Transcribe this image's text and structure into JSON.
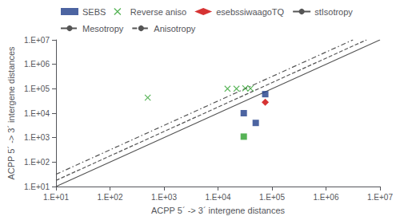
{
  "chart_data": {
    "type": "scatter",
    "xlabel": "ACPP 5´ -> 3´ intergene distances",
    "ylabel": "ACPP 5´ -> 3´ intergene distances",
    "log": true,
    "grid": false,
    "legend": "upper left",
    "xlim": [
      10,
      10000000
    ],
    "ylim": [
      10,
      10000000
    ],
    "xticks": [
      {
        "value": 10,
        "label": "1.E+01"
      },
      {
        "value": 100,
        "label": "1.E+02"
      },
      {
        "value": 1000,
        "label": "1.E+03"
      },
      {
        "value": 10000,
        "label": "1.E+04"
      },
      {
        "value": 100000,
        "label": "1.E+05"
      },
      {
        "value": 1000000,
        "label": "1.E+06"
      },
      {
        "value": 10000000,
        "label": "1.E+07"
      }
    ],
    "yticks": [
      {
        "value": 10,
        "label": "1.E+01"
      },
      {
        "value": 100,
        "label": "1.E+02"
      },
      {
        "value": 1000,
        "label": "1.E+03"
      },
      {
        "value": 10000,
        "label": "1.E+04"
      },
      {
        "value": 100000,
        "label": "1.E+05"
      },
      {
        "value": 1000000,
        "label": "1.E+06"
      },
      {
        "value": 10000000,
        "label": "1.E+07"
      }
    ],
    "series": [
      {
        "name": "SEBS",
        "type": "scatter",
        "marker": "square",
        "color": "#1f3d8a",
        "x": [
          30000,
          75000,
          50000
        ],
        "values": [
          10000,
          60000,
          4000
        ]
      },
      {
        "type": "scatter",
        "marker": "square",
        "color": "#2ca02c",
        "x": [
          30000
        ],
        "values": [
          1100
        ]
      },
      {
        "name": "Reverse aniso",
        "type": "scatter",
        "marker": "x",
        "color": "#2ca02c",
        "x": [
          500,
          15000,
          22000,
          32000,
          40000
        ],
        "values": [
          43000,
          100000,
          100000,
          105000,
          102000
        ]
      },
      {
        "name": "esebssiwaagoTQ",
        "type": "scatter",
        "marker": "diamond",
        "color": "#cc0000",
        "x": [
          75000
        ],
        "values": [
          28000
        ]
      },
      {
        "name": "stIsotropy",
        "type": "line",
        "line_style": "solid",
        "color": "#555555",
        "x": [
          10,
          10000000
        ],
        "values": [
          10,
          10000000
        ]
      },
      {
        "name": "Mesotropy",
        "type": "line",
        "line_style": "dashed",
        "color": "#555555",
        "x": [
          10,
          5623413.2519
        ],
        "values": [
          17.7827941004,
          10000000
        ]
      },
      {
        "name": "Anisotropy",
        "type": "line",
        "line_style": "dashdot",
        "color": "#555555",
        "x": [
          10,
          3162277.66017
        ],
        "values": [
          31.6227766017,
          10000000
        ]
      }
    ]
  }
}
